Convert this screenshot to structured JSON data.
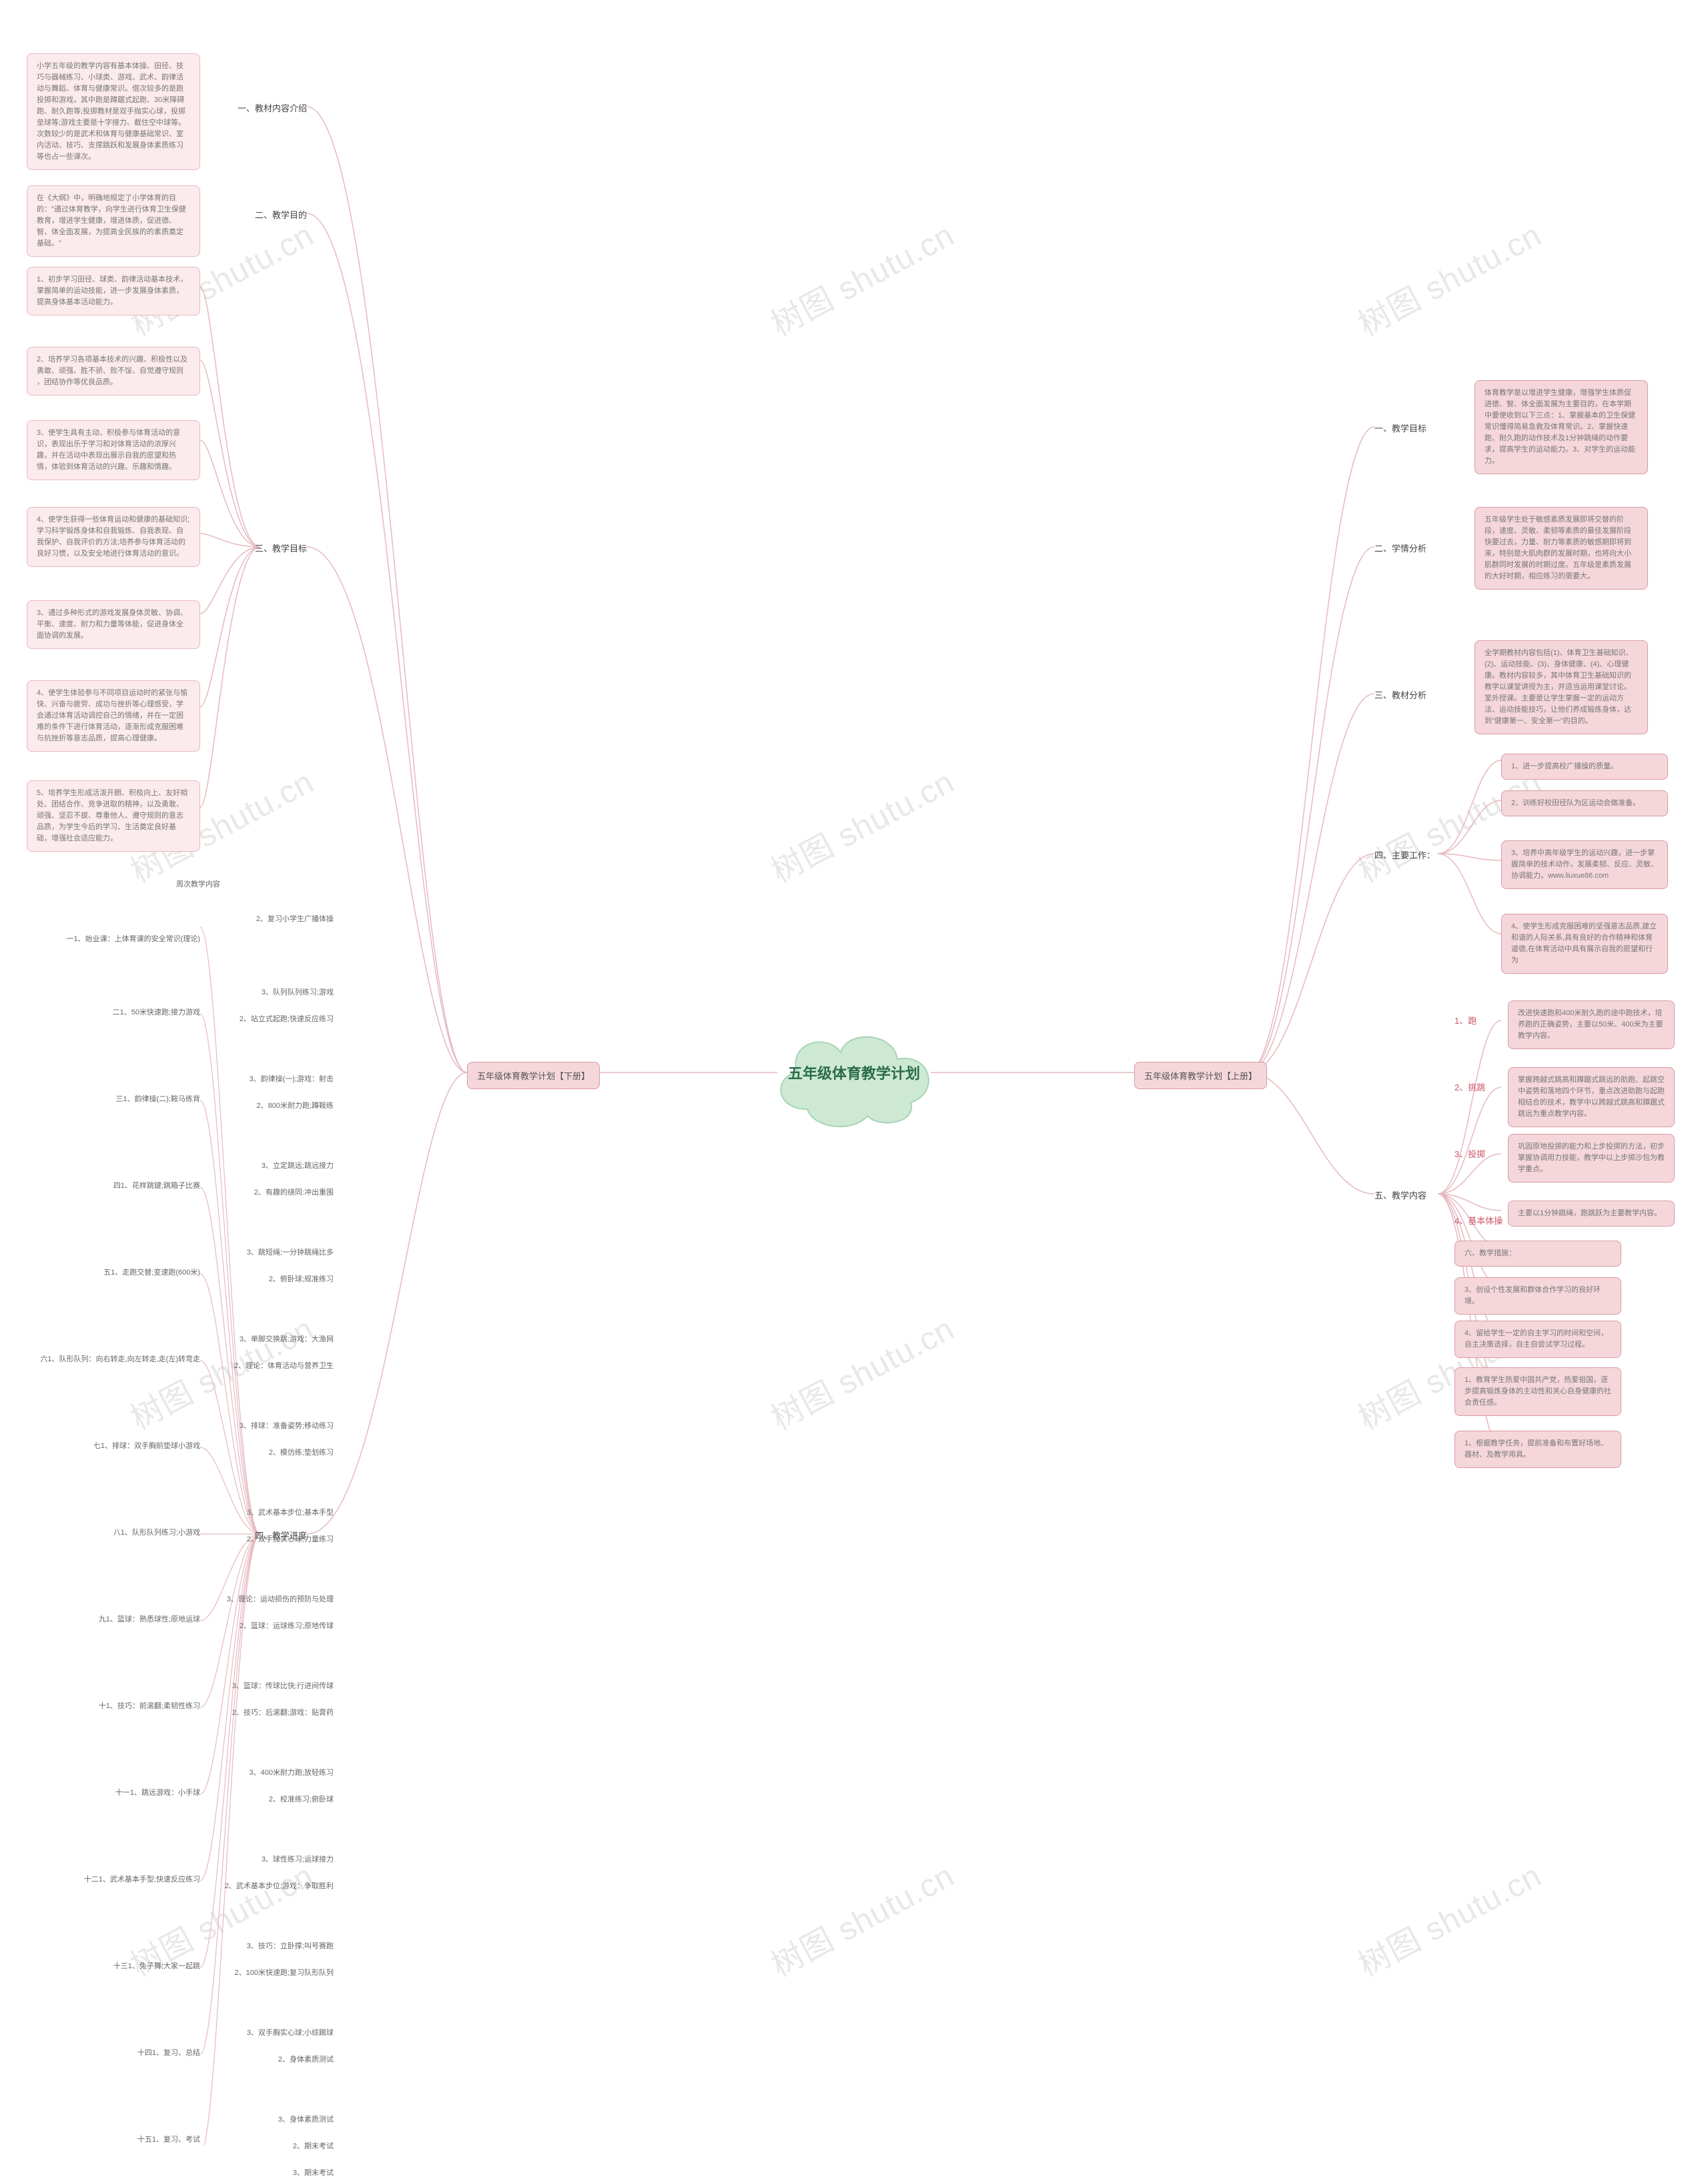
{
  "colors": {
    "bg": "#ffffff",
    "watermark": "#e8e8e8",
    "center_fill": "#cde9d4",
    "center_stroke": "#a8d4b5",
    "center_text": "#2a6b4a",
    "line_left": "#e6b9c0",
    "line_right": "#e6b9c0",
    "pink_light_bg": "#fbebed",
    "pink_light_border": "#e8b8bf",
    "pink_dark_bg": "#f5d7db",
    "pink_dark_border": "#d89aa2",
    "node_text": "#555555",
    "leaf_text": "#888888"
  },
  "watermark_text": "树图 shutu.cn",
  "center": "五年级体育教学计划",
  "left": {
    "title": "五年级体育教学计划【下册】",
    "sections": [
      {
        "label": "一、教材内容介绍",
        "leaf": "小学五年级的教学内容有基本体操、田径、技巧与器械练习、小球类、游戏、武术、韵律活动与舞蹈、体育与健康常识。借次较多的是跑投掷和游戏，其中跑是蹲踞式起跑、30米障碍跑、耐久跑等;投掷教材是双手抛实心球，投掷垒球等;游戏主要是十字接力、截住空中球等。次数较少的是武术和体育与健康基础常识、室内活动、技巧、支撑跳跃和发展身体素质练习等也占一些课次。"
      },
      {
        "label": "二、教学目的",
        "leaf": "在《大纲》中，明确地规定了小学体育的目的：\"通过体育教学，向学生进行体育卫生保健教育，增进学生健康，增进体质，促进德、智、体全面发展，为提高全民族的的素质奠定基础。\""
      },
      {
        "label": "三、教学目标",
        "leaves": [
          "1、初步学习田径、球类、韵律活动基本技术，掌握简单的运动技能，进一步发展身体素质，提高身体基本活动能力。",
          "2、培养学习各项基本技术的兴趣、积极性以及勇敢、顽强、胜不骄、败不馁、自觉遵守规则 ，团结协作等优良品质。",
          "3、使学生具有主动、积极参与体育活动的意识，表现出乐于学习和对体育活动的浓厚兴趣，并在活动中表现出展示自我的愿望和热情，体验到体育活动的兴趣、乐趣和情趣。",
          "4、使学生获得一些体育运动和健康的基础知识;学习科学锻炼身体和自我锻炼、自我表现、自我保护、自我评价的方法;培养参与体育活动的良好习惯，以及安全地进行体育活动的意识。",
          "3、通过多种形式的游戏发展身体灵敏、协调、平衡、速度、耐力和力量等体能，促进身体全面协调的发展。",
          "4、使学生体验参与不同项目运动时的紧张与愉快、兴奋与疲劳、成功与挫折等心理感受，学会通过体育活动调控自己的情绪，并在一定困难的条件下进行体育活动，逐渐形成克服困难与抗挫折等意志品质，提高心理健康。",
          "5、培养学生形成活泼开朗、积极向上、友好相处、团结合作、竞争进取的精神，以及勇敢、顽强、坚忍不拔、尊重他人、遵守规则的意志品质，为学生今后的学习、生活奠定良好基础，增强社会适应能力。"
        ]
      },
      {
        "label": "四、教学进度",
        "header": "周次教学内容",
        "rows": [
          {
            "l": "一1、始业课：上体育课的安全常识(理论)",
            "r": [
              "2、复习小学生广播体操"
            ]
          },
          {
            "l": "二1、50米快速跑;接力游戏",
            "r": [
              "3、队列队列练习;游戏",
              "2、站立式起跑;快速反应练习"
            ]
          },
          {
            "l": "三1、韵律操(二);鞍马练背",
            "r": [
              "3、韵律操(一);游戏：射击",
              "2、800米耐力跑;蹲鞍练"
            ]
          },
          {
            "l": "四1、花样跳键;跳箱子比赛",
            "r": [
              "3、立定跳远;跳远接力",
              "2、有趣的绕同:冲出重围"
            ]
          },
          {
            "l": "五1、走跑交替;变速跑(600米)",
            "r": [
              "3、跳短绳;一分钟跳绳比多",
              "2、俯卧球;规准练习"
            ]
          },
          {
            "l": "六1、队形队列：向右转走,向左转走,走(左)转弯走",
            "r": [
              "3、单脚交换跳;游戏：大渔网",
              "2、理论：体育活动与营养卫生"
            ]
          },
          {
            "l": "七1、排球：双手胸前垫球小游戏",
            "r": [
              "3、排球：准备姿势;移动练习",
              "2、模仿练;垫划练习"
            ]
          },
          {
            "l": "八1、队形队列练习;小游戏",
            "r": [
              "3、武术基本步位;基本手型",
              "2、双手抛实心球;力量练习"
            ]
          },
          {
            "l": "九1、篮球：熟悉球性;原地运球",
            "r": [
              "3、理论：运动损伤的预防与处理",
              "2、篮球：运球练习;原地传球"
            ]
          },
          {
            "l": "十1、技巧：前滚翻;柔韧性练习",
            "r": [
              "3、篮球：传球比快;行进间传球",
              "2、技巧：后滚翻;游戏：贴膏药"
            ]
          },
          {
            "l": "十一1、跳远游戏：小手球",
            "r": [
              "3、400米耐力跑;放轻练习",
              "2、校准练习;俯卧球"
            ]
          },
          {
            "l": "十二1、武术基本手型;快速反应练习",
            "r": [
              "3、球性练习;运球接力",
              "2、武术基本步位;游戏：争取胜利"
            ]
          },
          {
            "l": "十三1、兔子舞;大家一起跳",
            "r": [
              "3、技巧：立卧撑;叫号赛跑",
              "2、100米快速跑;复习队形队列"
            ]
          },
          {
            "l": "十四1、复习、总结",
            "r": [
              "3、双手胸实心球;小综踢球",
              "2、身体素质测试"
            ]
          },
          {
            "l": "十五1、复习、考试",
            "r": [
              "3、身体素质测试",
              "2、期末考试",
              "3、期末考试"
            ]
          }
        ]
      }
    ]
  },
  "right": {
    "title": "五年级体育教学计划【上册】",
    "sections": [
      {
        "label": "一、教学目标",
        "leaf": "体育教学是以增进学生健康，增强学生体质促进德、智、体全面发展为主要目的，在本学期中要使收到以下三点：1、掌握基本的卫生保健常识懂得简易急救及体育常识。2、掌握快速跑、耐久跑的动作技术及1分钟跳绳的动作要求，提高学生的运动能力。3、对学生的运动能力。"
      },
      {
        "label": "二、学情分析",
        "leaf": "五年级学生处于敏感素质发展即将交替的阶段，速度、灵敏、柔韧等素质的最佳发展阶段快要过去，力量、耐力等素质的敏感期即将到来，特别是大肌肉群的发展时期，也将向大小肌群同时发展的时期过度。五年级是素质发展的大好时期，相应练习的需要大。"
      },
      {
        "label": "三、教材分析",
        "leaf": "全学期教材内容包括(1)、体育卫生基础知识、(2)、运动技能、(3)、身体健康、(4)、心理健康。教材内容较多，其中体育卫生基础知识的教学以课堂讲授为主，并适当运用课堂讨论。室外授课。主要是让学生掌握一定的运动方法、运动技能技巧，让他们养成锻炼身体，达到\"健康第一、安全第一\"的目的。"
      },
      {
        "label": "四、主要工作：",
        "leaves": [
          "1、进一步提高校广播操的质量。",
          "2、训练好校田径队为区运动会做准备。",
          "3、培养中高年级学生的运动兴趣，进一步掌握简单的技术动作，发展柔韧、反应、灵敏、协调能力。www.liuxue86.com",
          "4、使学生形成克服困难的坚强意志品质,建立和谐的人际关系,具有良好的合作精神和体育道德,在体育活动中具有展示自我的愿望和行为"
        ]
      },
      {
        "label": "五、教学内容",
        "sub": [
          {
            "k": "1、跑",
            "v": "改进快速跑和400米耐久跑的途中跑技术，培养跑的正确姿势，主要以50米、400米为主要教学内容。"
          },
          {
            "k": "2、挑跳",
            "v": "掌握跨越式跳高和蹲踞式跳远的助跑、起跳空中姿势和落地四个环节，重点改进助跑与起跑相结合的技术，教学中以跨越式跳高和蹲踞式跳远为重点教学内容。"
          },
          {
            "k": "3、投掷",
            "v": "巩固原地投掷的能力和上步投掷的方法，初步掌握协调用力技能，教学中以上步掷沙包为教学重点。"
          },
          {
            "k": "4、基本体操",
            "v": "主要以1分钟跳绳，跑跳跃为主要教学内容。"
          },
          {
            "k": "",
            "v": "六、教学措施："
          },
          {
            "k": "",
            "v": "3、创设个性发展和群体合作学习的良好环境。"
          },
          {
            "k": "",
            "v": "4、留给学生一定的自主学习的时间和空间，自主决策选择，自主自尝试学习过程。"
          },
          {
            "k": "",
            "v": "1、教育学生热爱中国共产党，热爱祖国，逐步提高锻炼身体的主动性和关心自身健康的社会责任感。"
          },
          {
            "k": "",
            "v": "1、根据教学任务，提前准备和布置好场地、器材、及教学用具。"
          }
        ]
      }
    ]
  }
}
